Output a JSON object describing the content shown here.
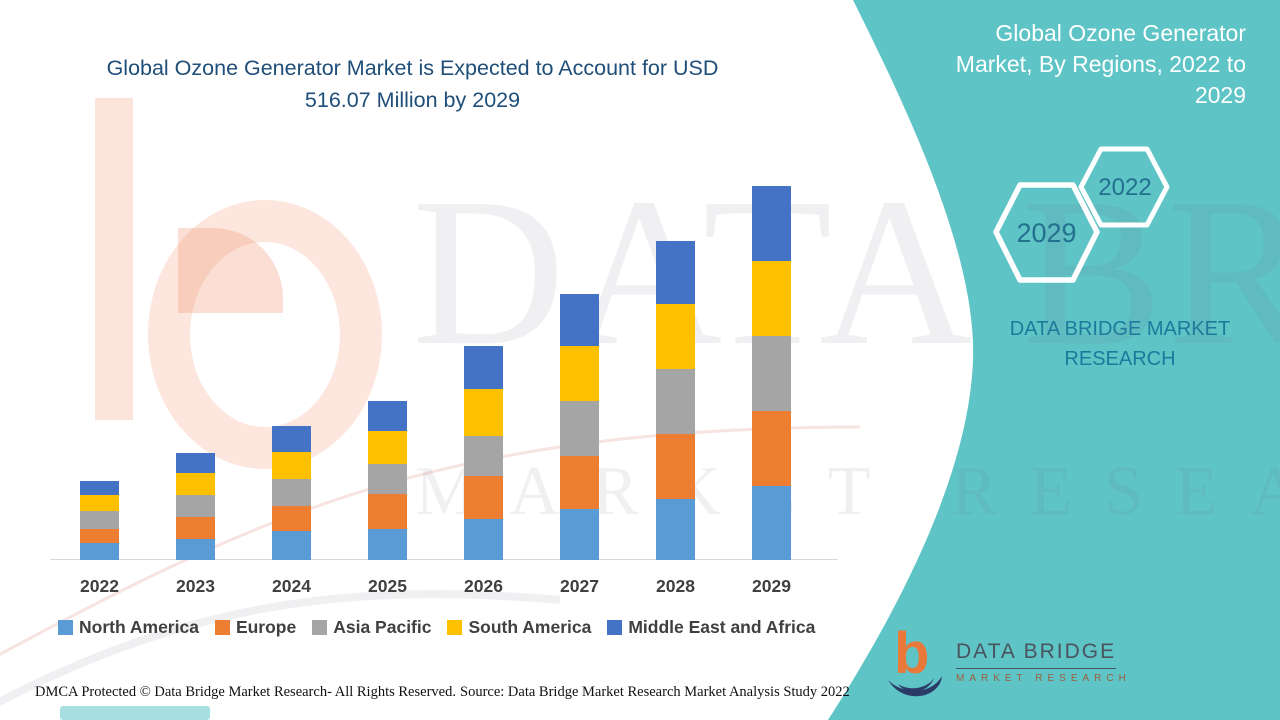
{
  "title": {
    "lines": [
      "Global Ozone Generator Market is Expected to Account for USD",
      "516.07 Million by 2029"
    ]
  },
  "side_panel": {
    "heading_lines": [
      "Global Ozone Generator",
      "Market, By Regions, 2022 to",
      "2029"
    ],
    "hexagon_large_label": "2029",
    "hexagon_small_label": "2022",
    "brand_lines": [
      "DATA BRIDGE MARKET",
      "RESEARCH"
    ]
  },
  "watermark": {
    "top": "DATA BRIDGE",
    "bottom": "MARKET RESEARCH"
  },
  "chart_data": {
    "type": "bar",
    "stacked": true,
    "title": "Global Ozone Generator Market, By Regions, 2022 to 2029",
    "unit": "USD Million",
    "categories": [
      "2022",
      "2023",
      "2024",
      "2025",
      "2026",
      "2027",
      "2028",
      "2029"
    ],
    "series": [
      {
        "name": "North America",
        "color": "#5B9BD5",
        "values": [
          22.9,
          29.0,
          40.5,
          42.8,
          56.6,
          70.4,
          84.2,
          102.7
        ]
      },
      {
        "name": "Europe",
        "color": "#ED7D31",
        "values": [
          19.9,
          30.0,
          34.5,
          48.3,
          59.8,
          73.6,
          89.8,
          103.6
        ]
      },
      {
        "name": "Asia Pacific",
        "color": "#A5A5A5",
        "values": [
          25.3,
          31.3,
          36.9,
          41.4,
          55.2,
          76.0,
          89.8,
          103.6
        ]
      },
      {
        "name": "South America",
        "color": "#FFC000",
        "values": [
          22.1,
          29.4,
          36.9,
          46.0,
          64.5,
          76.0,
          89.8,
          103.6
        ]
      },
      {
        "name": "Middle East and Africa",
        "color": "#4472C4",
        "values": [
          19.3,
          28.6,
          36.9,
          41.4,
          59.8,
          71.4,
          87.4,
          102.6
        ]
      }
    ],
    "totals_estimated": [
      109.5,
      148.3,
      185.7,
      219.9,
      295.9,
      367.4,
      441.0,
      516.07
    ],
    "ylim": [
      0,
      540
    ],
    "grid": false,
    "legend_position": "bottom"
  },
  "footer": {
    "dmca": "DMCA Protected © Data Bridge Market Research- All Rights Reserved.",
    "source": "Source: Data Bridge Market Research Market Analysis Study 2022"
  },
  "logo": {
    "title": "DATA BRIDGE",
    "subtitle": "MARKET RESEARCH"
  },
  "colors": {
    "teal": "#5EC4C6",
    "title_text": "#1F4E79",
    "panel_text": "#FFFFFF",
    "brand_text": "#1E7A9C",
    "hexagon_text": "#23708F",
    "axis_text": "#404040"
  }
}
